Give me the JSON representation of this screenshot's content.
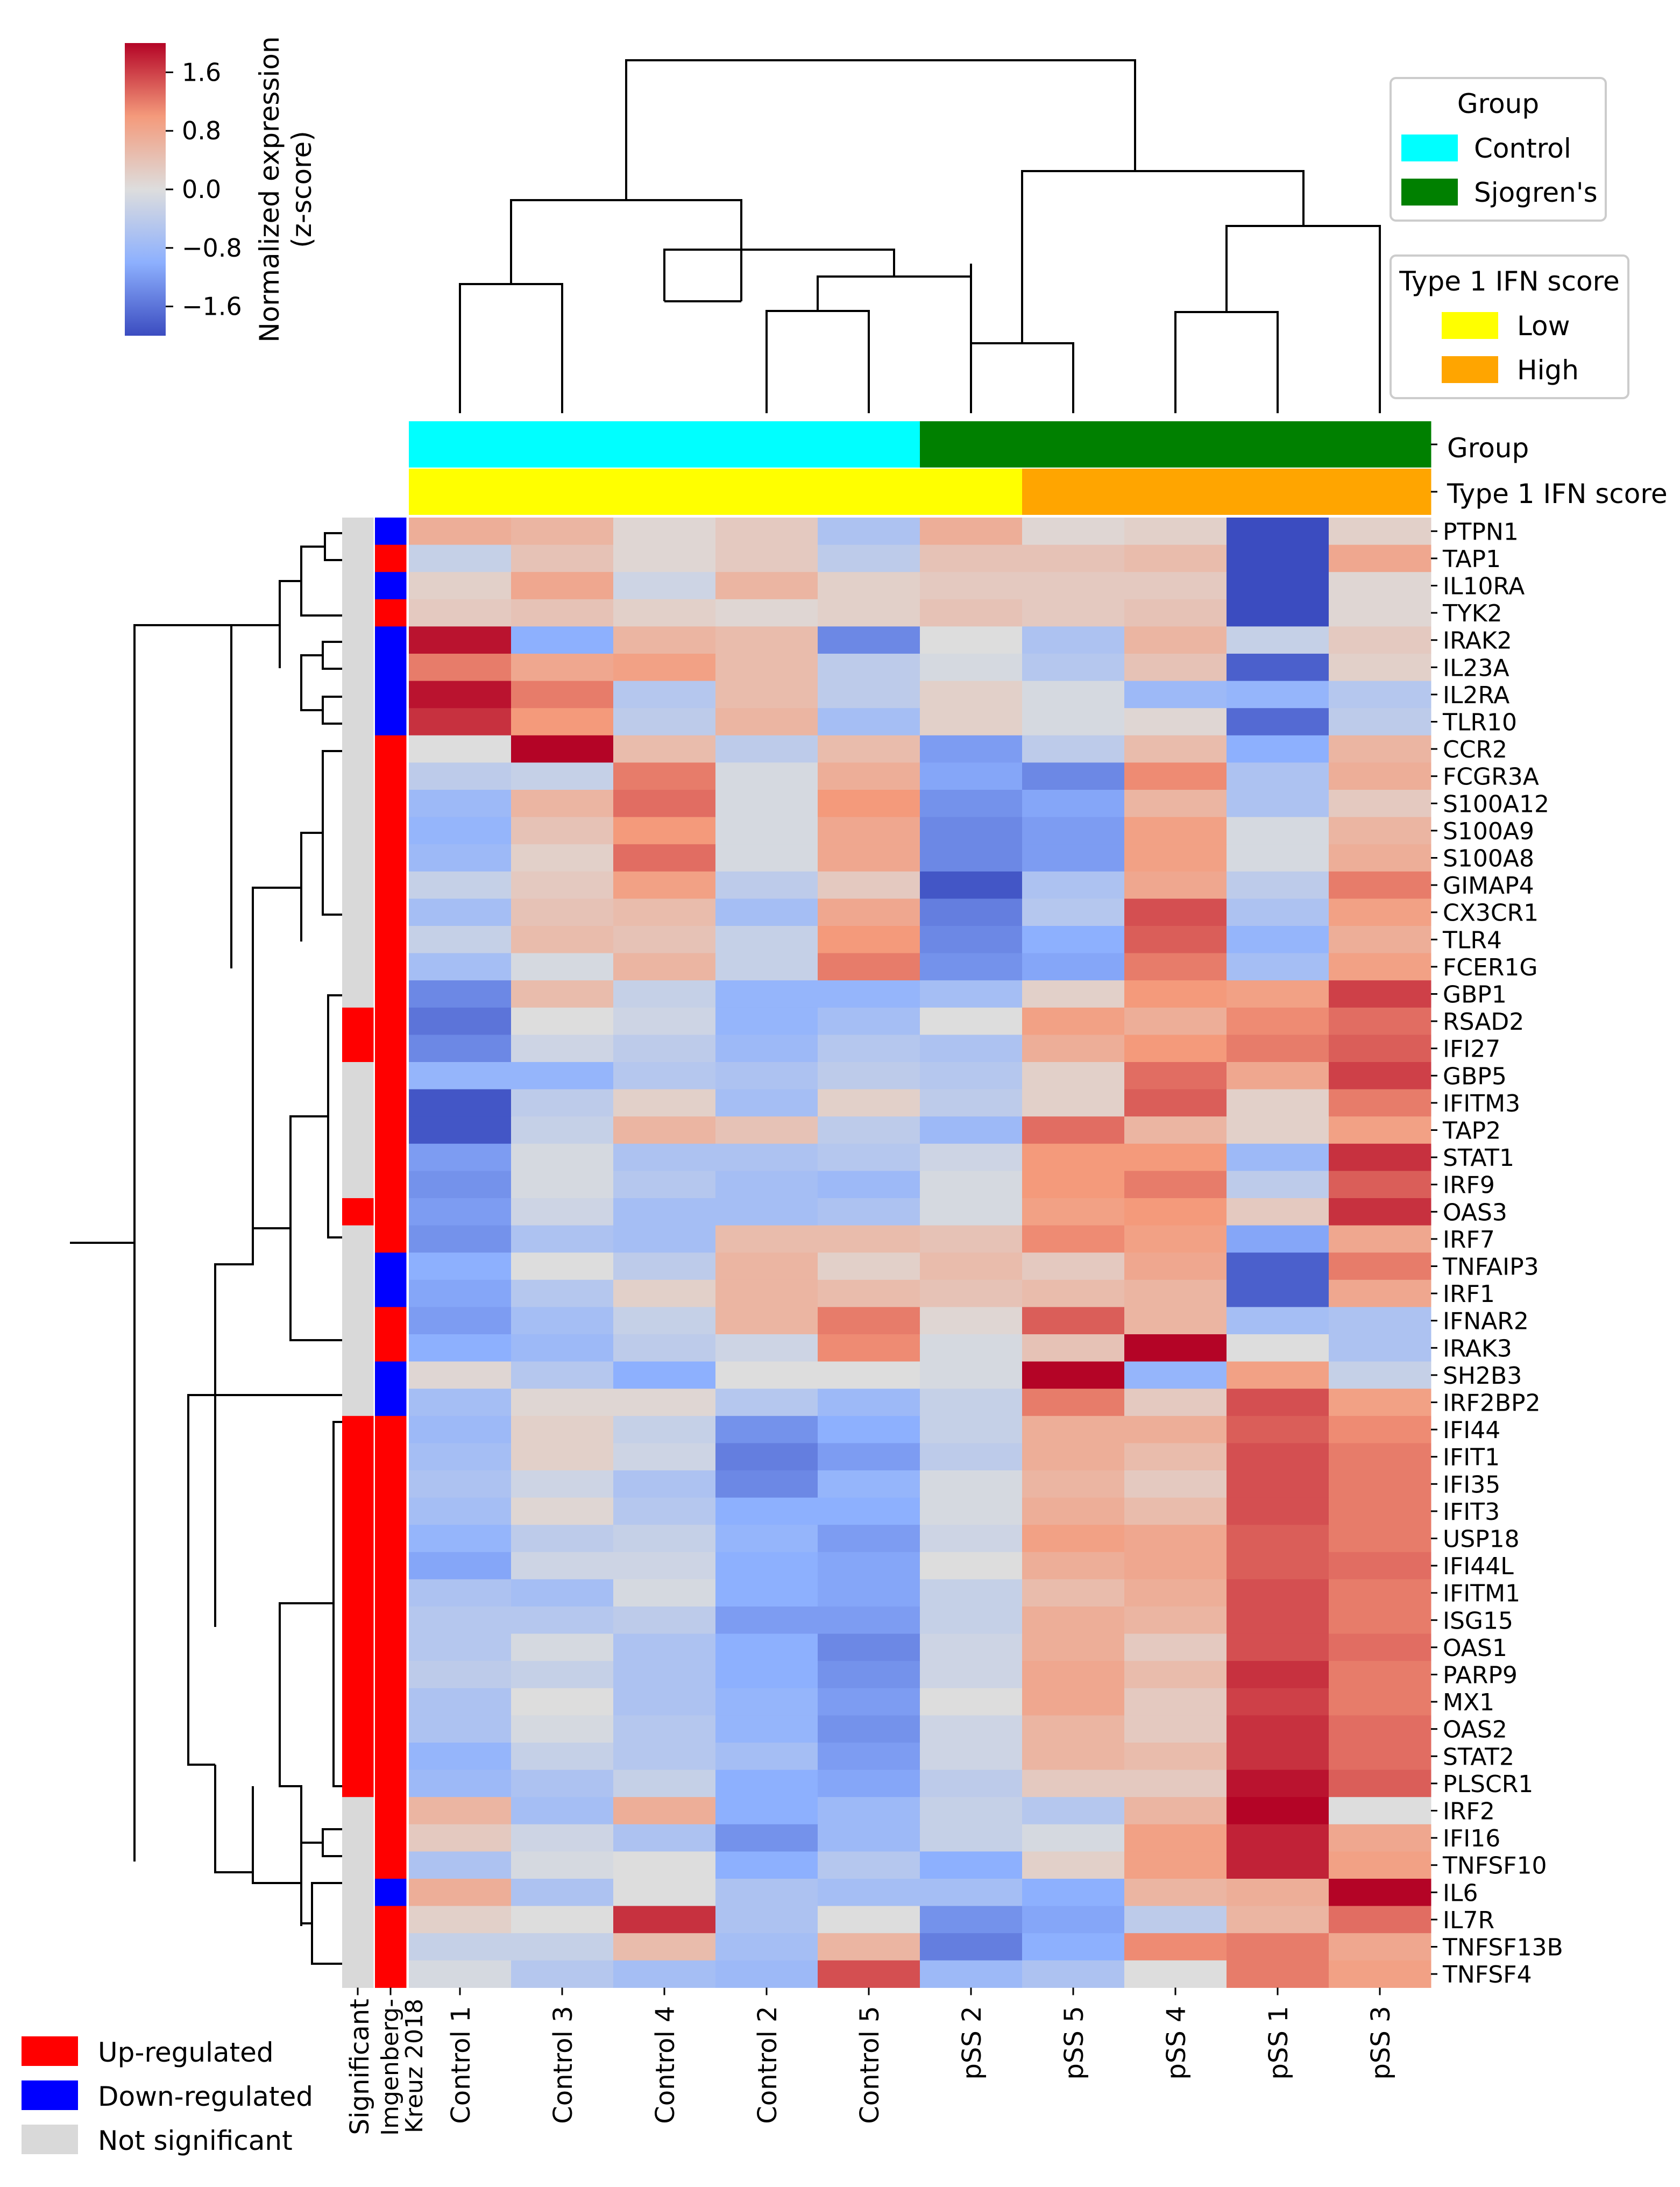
{
  "chart_data": {
    "type": "heatmap",
    "title": "",
    "colorbar": {
      "label_line1": "Normalized expression",
      "label_line2": "(z-score)",
      "vmin": -2.0,
      "vmax": 2.0,
      "ticks": [
        1.6,
        0.8,
        0.0,
        -0.8,
        -1.6
      ],
      "tick_labels": [
        "1.6",
        "0.8",
        "0.0",
        "−0.8",
        "−1.6"
      ]
    },
    "samples": [
      "Control 1",
      "Control 3",
      "Control 4",
      "Control 2",
      "Control 5",
      "pSS 2",
      "pSS 5",
      "pSS 4",
      "pSS 1",
      "pSS 3"
    ],
    "genes": [
      "PTPN1",
      "TAP1",
      "IL10RA",
      "TYK2",
      "IRAK2",
      "IL23A",
      "IL2RA",
      "TLR10",
      "CCR2",
      "FCGR3A",
      "S100A12",
      "S100A9",
      "S100A8",
      "GIMAP4",
      "CX3CR1",
      "TLR4",
      "FCER1G",
      "GBP1",
      "RSAD2",
      "IFI27",
      "GBP5",
      "IFITM3",
      "TAP2",
      "STAT1",
      "IRF9",
      "OAS3",
      "IRF7",
      "TNFAIP3",
      "IRF1",
      "IFNAR2",
      "IRAK3",
      "SH2B3",
      "IRF2BP2",
      "IFI44",
      "IFIT1",
      "IFI35",
      "IFIT3",
      "USP18",
      "IFI44L",
      "IFITM1",
      "ISG15",
      "OAS1",
      "PARP9",
      "MX1",
      "OAS2",
      "STAT2",
      "PLSCR1",
      "IRF2",
      "IFI16",
      "TNFSF10",
      "IL6",
      "IL7R",
      "TNFSF13B",
      "TNFSF4"
    ],
    "values": [
      [
        0.7,
        0.6,
        0.1,
        0.3,
        -0.6,
        0.7,
        0.1,
        0.2,
        -2.0,
        0.2
      ],
      [
        -0.3,
        0.4,
        0.1,
        0.3,
        -0.4,
        0.4,
        0.4,
        0.5,
        -2.0,
        0.8
      ],
      [
        0.2,
        0.8,
        -0.2,
        0.6,
        0.2,
        0.3,
        0.3,
        0.3,
        -2.0,
        0.1
      ],
      [
        0.3,
        0.4,
        0.2,
        0.1,
        0.2,
        0.4,
        0.3,
        0.4,
        -2.0,
        0.1
      ],
      [
        1.9,
        -1.0,
        0.6,
        0.5,
        -1.4,
        0.0,
        -0.6,
        0.6,
        -0.3,
        0.3
      ],
      [
        1.2,
        0.8,
        0.9,
        0.5,
        -0.4,
        -0.1,
        -0.5,
        0.4,
        -1.8,
        0.2
      ],
      [
        1.9,
        1.2,
        -0.5,
        0.5,
        -0.4,
        0.2,
        -0.1,
        -0.8,
        -0.9,
        -0.5
      ],
      [
        1.7,
        1.0,
        -0.4,
        0.6,
        -0.7,
        0.2,
        -0.1,
        0.1,
        -1.7,
        -0.4
      ],
      [
        0.0,
        2.1,
        0.5,
        -0.4,
        0.5,
        -1.2,
        -0.4,
        0.5,
        -1.0,
        0.6
      ],
      [
        -0.4,
        -0.3,
        1.2,
        -0.1,
        0.7,
        -1.1,
        -1.4,
        1.1,
        -0.6,
        0.7
      ],
      [
        -0.8,
        0.6,
        1.3,
        -0.1,
        1.0,
        -1.3,
        -1.1,
        0.6,
        -0.6,
        0.3
      ],
      [
        -0.9,
        0.4,
        1.0,
        -0.1,
        0.8,
        -1.4,
        -1.2,
        0.9,
        -0.1,
        0.6
      ],
      [
        -0.8,
        0.2,
        1.3,
        -0.1,
        0.8,
        -1.4,
        -1.2,
        0.9,
        -0.1,
        0.7
      ],
      [
        -0.3,
        0.3,
        0.9,
        -0.4,
        0.3,
        -1.9,
        -0.6,
        0.8,
        -0.4,
        1.2
      ],
      [
        -0.7,
        0.4,
        0.5,
        -0.7,
        0.8,
        -1.5,
        -0.5,
        1.5,
        -0.6,
        0.9
      ],
      [
        -0.3,
        0.5,
        0.4,
        -0.3,
        1.0,
        -1.4,
        -1.0,
        1.4,
        -0.9,
        0.7
      ],
      [
        -0.7,
        -0.1,
        0.6,
        -0.3,
        1.2,
        -1.3,
        -1.1,
        1.2,
        -0.7,
        0.9
      ],
      [
        -1.4,
        0.5,
        -0.3,
        -0.9,
        -0.9,
        -0.7,
        0.2,
        1.0,
        0.9,
        1.6
      ],
      [
        -1.6,
        0.0,
        -0.2,
        -0.9,
        -0.7,
        0.0,
        0.9,
        0.7,
        1.1,
        1.3
      ],
      [
        -1.4,
        -0.2,
        -0.4,
        -0.8,
        -0.5,
        -0.6,
        0.7,
        1.0,
        1.2,
        1.4
      ],
      [
        -0.9,
        -0.9,
        -0.5,
        -0.6,
        -0.4,
        -0.5,
        0.2,
        1.3,
        0.8,
        1.6
      ],
      [
        -1.9,
        -0.4,
        0.2,
        -0.7,
        0.2,
        -0.4,
        0.2,
        1.4,
        0.2,
        1.2
      ],
      [
        -1.9,
        -0.3,
        0.6,
        0.4,
        -0.4,
        -0.8,
        1.3,
        0.6,
        0.2,
        0.9
      ],
      [
        -1.2,
        -0.1,
        -0.6,
        -0.6,
        -0.5,
        -0.2,
        1.0,
        1.0,
        -0.8,
        1.7
      ],
      [
        -1.3,
        -0.1,
        -0.5,
        -0.7,
        -0.8,
        -0.1,
        1.0,
        1.2,
        -0.4,
        1.4
      ],
      [
        -1.2,
        -0.2,
        -0.7,
        -0.7,
        -0.6,
        -0.1,
        0.9,
        1.0,
        0.3,
        1.7
      ],
      [
        -1.3,
        -0.6,
        -0.7,
        0.5,
        0.5,
        0.4,
        1.1,
        0.9,
        -1.1,
        0.8
      ],
      [
        -1.0,
        0.0,
        -0.4,
        0.6,
        0.2,
        0.5,
        0.3,
        0.8,
        -1.8,
        1.2
      ],
      [
        -1.1,
        -0.5,
        0.2,
        0.6,
        0.5,
        0.4,
        0.5,
        0.6,
        -1.8,
        0.8
      ],
      [
        -1.2,
        -0.7,
        -0.3,
        0.6,
        1.2,
        0.1,
        1.4,
        0.6,
        -0.7,
        -0.6
      ],
      [
        -1.0,
        -0.8,
        -0.4,
        -0.2,
        1.1,
        -0.1,
        0.4,
        2.0,
        0.0,
        -0.6
      ],
      [
        0.1,
        -0.5,
        -1.0,
        0.0,
        0.0,
        -0.1,
        2.2,
        -0.9,
        0.9,
        -0.3
      ],
      [
        -0.7,
        0.1,
        0.1,
        -0.5,
        -0.8,
        -0.3,
        1.2,
        0.3,
        1.5,
        0.9
      ],
      [
        -0.8,
        0.2,
        -0.3,
        -1.3,
        -1.0,
        -0.3,
        0.7,
        0.7,
        1.4,
        1.1
      ],
      [
        -0.7,
        0.2,
        -0.2,
        -1.5,
        -1.2,
        -0.4,
        0.7,
        0.5,
        1.5,
        1.2
      ],
      [
        -0.6,
        -0.2,
        -0.6,
        -1.4,
        -0.9,
        -0.1,
        0.6,
        0.3,
        1.5,
        1.2
      ],
      [
        -0.7,
        0.1,
        -0.5,
        -1.0,
        -1.0,
        -0.1,
        0.7,
        0.5,
        1.5,
        1.2
      ],
      [
        -0.9,
        -0.4,
        -0.3,
        -0.9,
        -1.2,
        -0.2,
        0.9,
        0.8,
        1.4,
        1.2
      ],
      [
        -1.1,
        -0.2,
        -0.2,
        -1.0,
        -1.1,
        0.0,
        0.7,
        0.8,
        1.4,
        1.3
      ],
      [
        -0.6,
        -0.7,
        -0.1,
        -1.0,
        -1.1,
        -0.3,
        0.5,
        0.7,
        1.5,
        1.2
      ],
      [
        -0.5,
        -0.5,
        -0.4,
        -1.2,
        -1.2,
        -0.3,
        0.7,
        0.6,
        1.5,
        1.2
      ],
      [
        -0.5,
        -0.1,
        -0.6,
        -1.0,
        -1.4,
        -0.2,
        0.7,
        0.3,
        1.5,
        1.3
      ],
      [
        -0.4,
        -0.3,
        -0.6,
        -1.0,
        -1.3,
        -0.2,
        0.8,
        0.5,
        1.7,
        1.2
      ],
      [
        -0.6,
        0.0,
        -0.6,
        -0.9,
        -1.2,
        0.0,
        0.8,
        0.3,
        1.6,
        1.2
      ],
      [
        -0.6,
        -0.1,
        -0.5,
        -0.9,
        -1.3,
        -0.2,
        0.6,
        0.3,
        1.7,
        1.3
      ],
      [
        -0.9,
        -0.3,
        -0.5,
        -0.7,
        -1.2,
        -0.2,
        0.6,
        0.5,
        1.7,
        1.3
      ],
      [
        -0.8,
        -0.6,
        -0.3,
        -1.0,
        -1.1,
        -0.4,
        0.3,
        0.3,
        1.9,
        1.4
      ],
      [
        0.6,
        -0.7,
        0.7,
        -1.0,
        -0.8,
        -0.3,
        -0.5,
        0.6,
        2.1,
        0.0
      ],
      [
        0.3,
        -0.2,
        -0.6,
        -1.3,
        -0.8,
        -0.3,
        -0.1,
        0.9,
        1.8,
        0.8
      ],
      [
        -0.6,
        -0.1,
        0.0,
        -1.0,
        -0.5,
        -1.0,
        0.2,
        0.9,
        1.8,
        0.9
      ],
      [
        0.7,
        -0.6,
        0.0,
        -0.6,
        -0.7,
        -0.7,
        -1.0,
        0.6,
        0.7,
        2.1
      ],
      [
        0.2,
        0.0,
        1.7,
        -0.6,
        0.0,
        -1.3,
        -1.1,
        -0.4,
        0.6,
        1.3
      ],
      [
        -0.3,
        -0.3,
        0.5,
        -0.7,
        0.6,
        -1.5,
        -1.0,
        1.1,
        1.2,
        0.8
      ],
      [
        -0.1,
        -0.5,
        -0.7,
        -0.8,
        1.5,
        -0.8,
        -0.6,
        0.0,
        1.2,
        0.9
      ]
    ],
    "row_annotations": {
      "significant_label": "Significant",
      "imgenberg_label_line1": "Imgenberg-",
      "imgenberg_label_line2": "Kreuz 2018",
      "significant": [
        "ns",
        "ns",
        "ns",
        "ns",
        "ns",
        "ns",
        "ns",
        "ns",
        "ns",
        "ns",
        "ns",
        "ns",
        "ns",
        "ns",
        "ns",
        "ns",
        "ns",
        "ns",
        "up",
        "up",
        "ns",
        "ns",
        "ns",
        "ns",
        "ns",
        "up",
        "ns",
        "ns",
        "ns",
        "ns",
        "ns",
        "ns",
        "ns",
        "up",
        "up",
        "up",
        "up",
        "up",
        "up",
        "up",
        "up",
        "up",
        "up",
        "up",
        "up",
        "up",
        "up",
        "ns",
        "ns",
        "ns",
        "ns",
        "ns",
        "ns",
        "ns"
      ],
      "imgenberg_kreuz_2018": [
        "down",
        "up",
        "down",
        "up",
        "down",
        "down",
        "down",
        "down",
        "up",
        "up",
        "up",
        "up",
        "up",
        "up",
        "up",
        "up",
        "up",
        "up",
        "up",
        "up",
        "up",
        "up",
        "up",
        "up",
        "up",
        "up",
        "up",
        "down",
        "down",
        "up",
        "up",
        "down",
        "down",
        "up",
        "up",
        "up",
        "up",
        "up",
        "up",
        "up",
        "up",
        "up",
        "up",
        "up",
        "up",
        "up",
        "up",
        "up",
        "up",
        "up",
        "down",
        "up",
        "up",
        "up"
      ]
    },
    "column_annotations": {
      "group_label": "Group",
      "ifn_label": "Type 1 IFN score",
      "group": [
        "Control",
        "Control",
        "Control",
        "Control",
        "Control",
        "Sjogren's",
        "Sjogren's",
        "Sjogren's",
        "Sjogren's",
        "Sjogren's"
      ],
      "ifn_score": [
        "Low",
        "Low",
        "Low",
        "Low",
        "Low",
        "Low",
        "High",
        "High",
        "High",
        "High"
      ]
    }
  },
  "legends": {
    "group": {
      "title": "Group",
      "items": [
        {
          "label": "Control",
          "color": "#00ffff"
        },
        {
          "label": "Sjogren's",
          "color": "#008000"
        }
      ]
    },
    "ifn": {
      "title": "Type 1 IFN score",
      "items": [
        {
          "label": "Low",
          "color": "#ffff00"
        },
        {
          "label": "High",
          "color": "#ffa500"
        }
      ]
    },
    "regulation": {
      "items": [
        {
          "label": "Up-regulated",
          "color": "#ff0000"
        },
        {
          "label": "Down-regulated",
          "color": "#0000ff"
        },
        {
          "label": "Not significant",
          "color": "#d9d9d9"
        }
      ]
    }
  },
  "colors": {
    "up": "#ff0000",
    "down": "#0000ff",
    "ns": "#d9d9d9",
    "control": "#00ffff",
    "sjogren": "#008000",
    "low": "#ffff00",
    "high": "#ffa500"
  }
}
